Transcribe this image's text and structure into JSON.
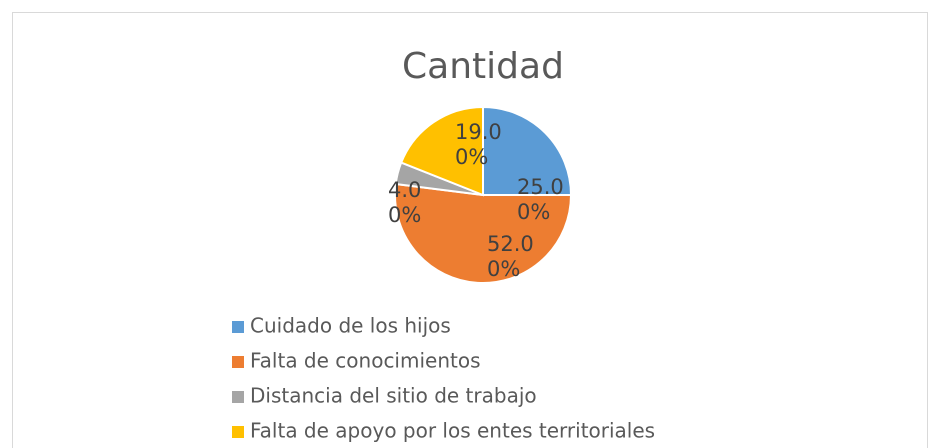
{
  "chart_data": {
    "type": "pie",
    "title": "Cantidad",
    "categories": [
      "Cuidado de los hijos",
      "Falta de conocimientos",
      "Distancia del sitio de trabajo",
      "Falta de apoyo por los entes territoriales"
    ],
    "values": [
      25,
      52,
      4,
      19
    ],
    "value_labels": [
      "25.00%",
      "52.00%",
      "4.00%",
      "19.00%"
    ],
    "colors": [
      "#5b9bd5",
      "#ed7d31",
      "#a5a5a5",
      "#ffc000"
    ],
    "legend": "bottom"
  }
}
